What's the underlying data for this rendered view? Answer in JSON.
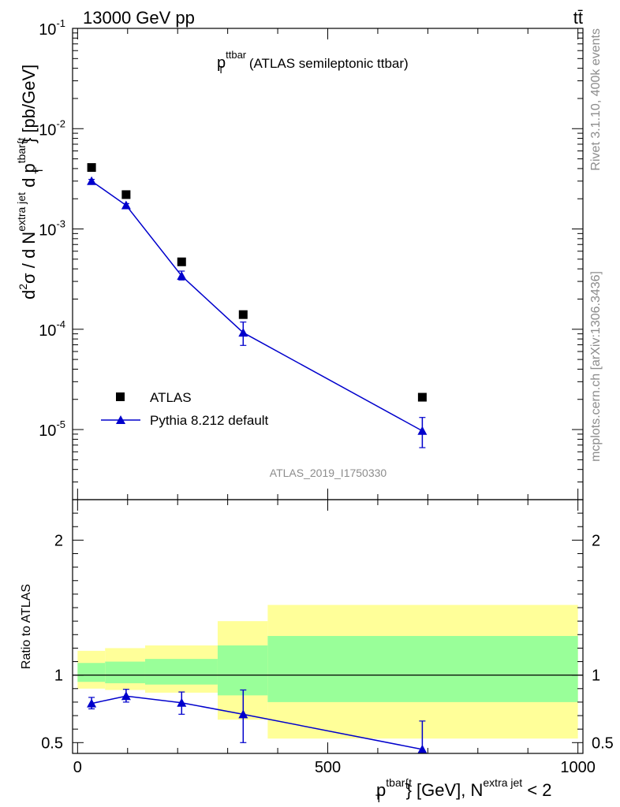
{
  "header": {
    "energy_label": "13000 GeV pp",
    "process_label": "tt̄"
  },
  "side": {
    "rivet_label": "Rivet 3.1.10,  400k events",
    "mcplots_label": "mcplots.cern.ch [arXiv:1306.3436]"
  },
  "colors": {
    "data": "#000000",
    "mc": "#0000cc",
    "band_outer": "#ffff99",
    "band_inner": "#99ff99"
  },
  "chart_data": [
    {
      "type": "scatter",
      "title_main": "p",
      "title_sup": "ttbar",
      "title_sub": "T",
      "title_rest": " (ATLAS semileptonic ttbar)",
      "analysis_id": "ATLAS_2019_I1750330",
      "yscale": "log",
      "ylim": [
        2e-06,
        0.1
      ],
      "xlim": [
        -10,
        1010
      ],
      "ylabel": {
        "prefix": "d",
        "exp2": "2",
        "sigma": "σ  /  d N",
        "sup_extra": "extra jet",
        "mid": " d p",
        "sup_tbar": "tbar{t",
        "sub_T": "T",
        "suffix": "} [pb/GeV]"
      },
      "y_ticks": [
        {
          "value": 0.1,
          "base": "10",
          "exp": "-1"
        },
        {
          "value": 0.01,
          "base": "10",
          "exp": "-2"
        },
        {
          "value": 0.001,
          "base": "10",
          "exp": "-3"
        },
        {
          "value": 0.0001,
          "base": "10",
          "exp": "-4"
        },
        {
          "value": 1e-05,
          "base": "10",
          "exp": "-5"
        }
      ],
      "legend": {
        "position": "bottom-left",
        "entries": [
          "ATLAS",
          "Pythia 8.212 default"
        ]
      },
      "series": [
        {
          "name": "ATLAS",
          "marker": "square",
          "points": [
            {
              "x": 28,
              "y": 0.0041
            },
            {
              "x": 97,
              "y": 0.0022
            },
            {
              "x": 208,
              "y": 0.00047
            },
            {
              "x": 331,
              "y": 0.00014
            },
            {
              "x": 689,
              "y": 2.1e-05
            }
          ]
        },
        {
          "name": "Pythia 8.212 default",
          "marker": "triangle",
          "points": [
            {
              "x": 28,
              "y": 0.003,
              "lo": 0.00288,
              "hi": 0.00312
            },
            {
              "x": 97,
              "y": 0.00172,
              "lo": 0.00165,
              "hi": 0.00179
            },
            {
              "x": 208,
              "y": 0.00034,
              "lo": 0.00031,
              "hi": 0.00038
            },
            {
              "x": 331,
              "y": 9.25e-05,
              "lo": 6.9e-05,
              "hi": 0.000118
            },
            {
              "x": 689,
              "y": 9.7e-06,
              "lo": 6.6e-06,
              "hi": 1.32e-05
            }
          ]
        }
      ]
    },
    {
      "type": "line",
      "ylabel": "Ratio to ATLAS",
      "xlabel": {
        "p": "p",
        "sup_tbar": "tbar{t",
        "sub_T": "T",
        "rest": "} [GeV], N",
        "sup_extra": "extra jet",
        "tail": " < 2"
      },
      "xlim": [
        -10,
        1010
      ],
      "ylim": [
        0.42,
        2.3
      ],
      "x_ticks": [
        0,
        500,
        1000
      ],
      "y_ticks_labeled": [
        0.5,
        1,
        2
      ],
      "reference_line": 1,
      "bands": [
        {
          "x0": 0,
          "x1": 55,
          "outer": [
            0.9,
            1.18
          ],
          "inner": [
            0.95,
            1.09
          ]
        },
        {
          "x0": 55,
          "x1": 135,
          "outer": [
            0.89,
            1.2
          ],
          "inner": [
            0.94,
            1.1
          ]
        },
        {
          "x0": 135,
          "x1": 280,
          "outer": [
            0.87,
            1.22
          ],
          "inner": [
            0.93,
            1.12
          ]
        },
        {
          "x0": 280,
          "x1": 380,
          "outer": [
            0.67,
            1.4
          ],
          "inner": [
            0.85,
            1.22
          ]
        },
        {
          "x0": 380,
          "x1": 1000,
          "outer": [
            0.53,
            1.52
          ],
          "inner": [
            0.8,
            1.29
          ]
        }
      ],
      "series": [
        {
          "name": "Pythia 8.212 default",
          "points": [
            {
              "x": 28,
              "y": 0.79,
              "lo": 0.75,
              "hi": 0.835
            },
            {
              "x": 97,
              "y": 0.845,
              "lo": 0.8,
              "hi": 0.895
            },
            {
              "x": 208,
              "y": 0.795,
              "lo": 0.71,
              "hi": 0.875
            },
            {
              "x": 331,
              "y": 0.71,
              "lo": 0.5,
              "hi": 0.89
            },
            {
              "x": 689,
              "y": 0.45,
              "lo": 0.32,
              "hi": 0.66
            }
          ]
        }
      ]
    }
  ]
}
